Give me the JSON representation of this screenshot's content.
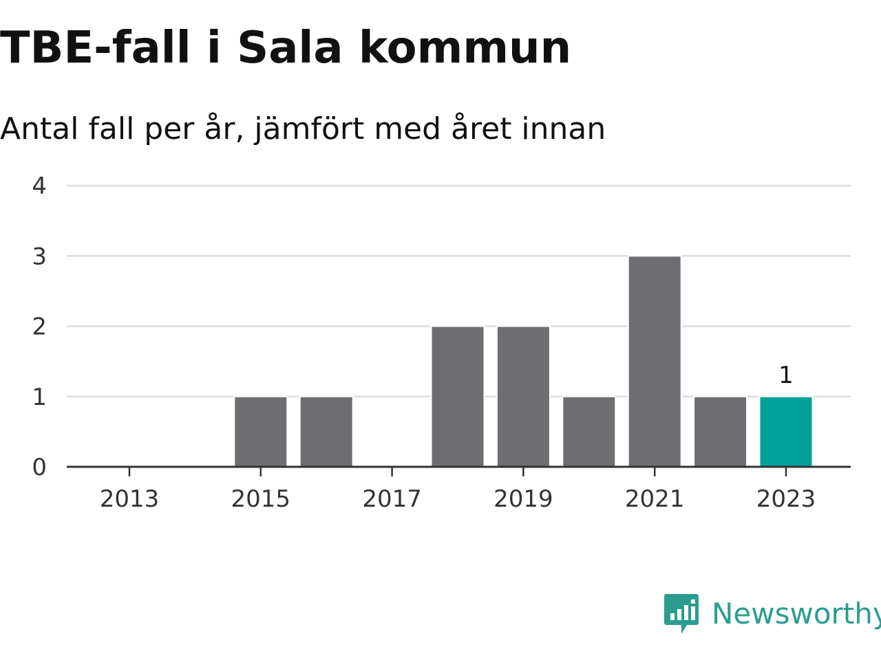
{
  "title": "TBE-fall i Sala kommun",
  "subtitle": "Antal fall per år, jämfört med året innan",
  "brand": {
    "name": "Newsworthy",
    "icon": "bar-chart-speech-bubble-icon",
    "color": "#2a9d90"
  },
  "colors": {
    "bar": "#6e6d72",
    "highlight": "#00a19a",
    "grid": "#dddddd",
    "axis": "#333333"
  },
  "chart_data": {
    "type": "bar",
    "title": "TBE-fall i Sala kommun",
    "subtitle": "Antal fall per år, jämfört med året innan",
    "categories": [
      "2013",
      "2014",
      "2015",
      "2016",
      "2017",
      "2018",
      "2019",
      "2020",
      "2021",
      "2022",
      "2023"
    ],
    "values": [
      0,
      0,
      1,
      1,
      0,
      2,
      2,
      1,
      3,
      1,
      1
    ],
    "highlight_index": 10,
    "data_labels": [
      {
        "index": 10,
        "text": "1"
      }
    ],
    "x_tick_labels": [
      "2013",
      "2015",
      "2017",
      "2019",
      "2021",
      "2023"
    ],
    "y_ticks": [
      0,
      1,
      2,
      3,
      4
    ],
    "ylim": [
      0,
      4
    ],
    "xlabel": "",
    "ylabel": "",
    "grid": true,
    "legend": "none"
  }
}
